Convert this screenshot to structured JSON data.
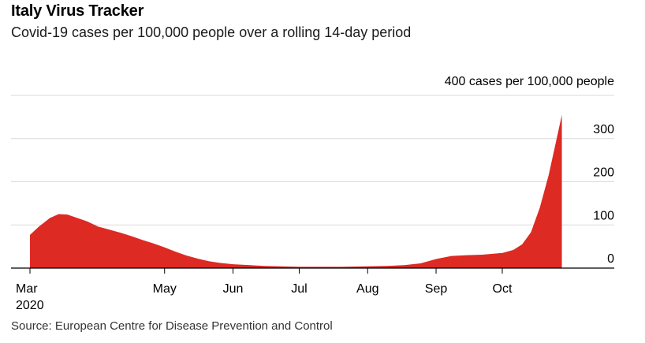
{
  "header": {
    "title": "Italy Virus Tracker",
    "subtitle": "Covid-19 cases per 100,000 people over a rolling 14-day period"
  },
  "footer": {
    "source": "Source: European Centre for Disease Prevention and Control"
  },
  "chart_data": {
    "type": "area",
    "title": "Italy Virus Tracker",
    "subtitle": "Covid-19 cases per 100,000 people over a rolling 14-day period",
    "xlabel": "",
    "ylabel": "400 cases per 100,000 people",
    "ylim": [
      0,
      400
    ],
    "y_ticks": [
      {
        "value": 300,
        "label": "300"
      },
      {
        "value": 200,
        "label": "200"
      },
      {
        "value": 100,
        "label": "100"
      },
      {
        "value": 0,
        "label": "0"
      }
    ],
    "x_ticks": [
      {
        "date": "2020-03-01",
        "label": "Mar",
        "sublabel": "2020"
      },
      {
        "date": "2020-05-01",
        "label": "May"
      },
      {
        "date": "2020-06-01",
        "label": "Jun"
      },
      {
        "date": "2020-07-01",
        "label": "Jul"
      },
      {
        "date": "2020-08-01",
        "label": "Aug"
      },
      {
        "date": "2020-09-01",
        "label": "Sep"
      },
      {
        "date": "2020-10-01",
        "label": "Oct"
      }
    ],
    "grid": true,
    "color": "#dd2a23",
    "series": [
      {
        "points": [
          [
            "2020-03-01",
            77
          ],
          [
            "2020-03-05",
            96
          ],
          [
            "2020-03-10",
            116
          ],
          [
            "2020-03-14",
            125
          ],
          [
            "2020-03-18",
            124
          ],
          [
            "2020-03-22",
            117
          ],
          [
            "2020-03-27",
            108
          ],
          [
            "2020-04-01",
            96
          ],
          [
            "2020-04-06",
            89
          ],
          [
            "2020-04-11",
            82
          ],
          [
            "2020-04-16",
            74
          ],
          [
            "2020-04-21",
            65
          ],
          [
            "2020-04-26",
            57
          ],
          [
            "2020-05-01",
            48
          ],
          [
            "2020-05-06",
            38
          ],
          [
            "2020-05-11",
            29
          ],
          [
            "2020-05-16",
            22
          ],
          [
            "2020-05-21",
            16
          ],
          [
            "2020-05-26",
            12
          ],
          [
            "2020-06-01",
            9
          ],
          [
            "2020-06-08",
            7
          ],
          [
            "2020-06-15",
            5
          ],
          [
            "2020-06-22",
            4
          ],
          [
            "2020-07-01",
            3
          ],
          [
            "2020-07-10",
            3
          ],
          [
            "2020-07-20",
            3
          ],
          [
            "2020-08-01",
            4
          ],
          [
            "2020-08-10",
            5
          ],
          [
            "2020-08-18",
            7
          ],
          [
            "2020-08-25",
            11
          ],
          [
            "2020-09-01",
            21
          ],
          [
            "2020-09-08",
            28
          ],
          [
            "2020-09-15",
            30
          ],
          [
            "2020-09-22",
            31
          ],
          [
            "2020-10-01",
            35
          ],
          [
            "2020-10-06",
            42
          ],
          [
            "2020-10-10",
            55
          ],
          [
            "2020-10-14",
            83
          ],
          [
            "2020-10-18",
            140
          ],
          [
            "2020-10-22",
            215
          ],
          [
            "2020-10-25",
            285
          ],
          [
            "2020-10-28",
            355
          ]
        ]
      }
    ]
  }
}
